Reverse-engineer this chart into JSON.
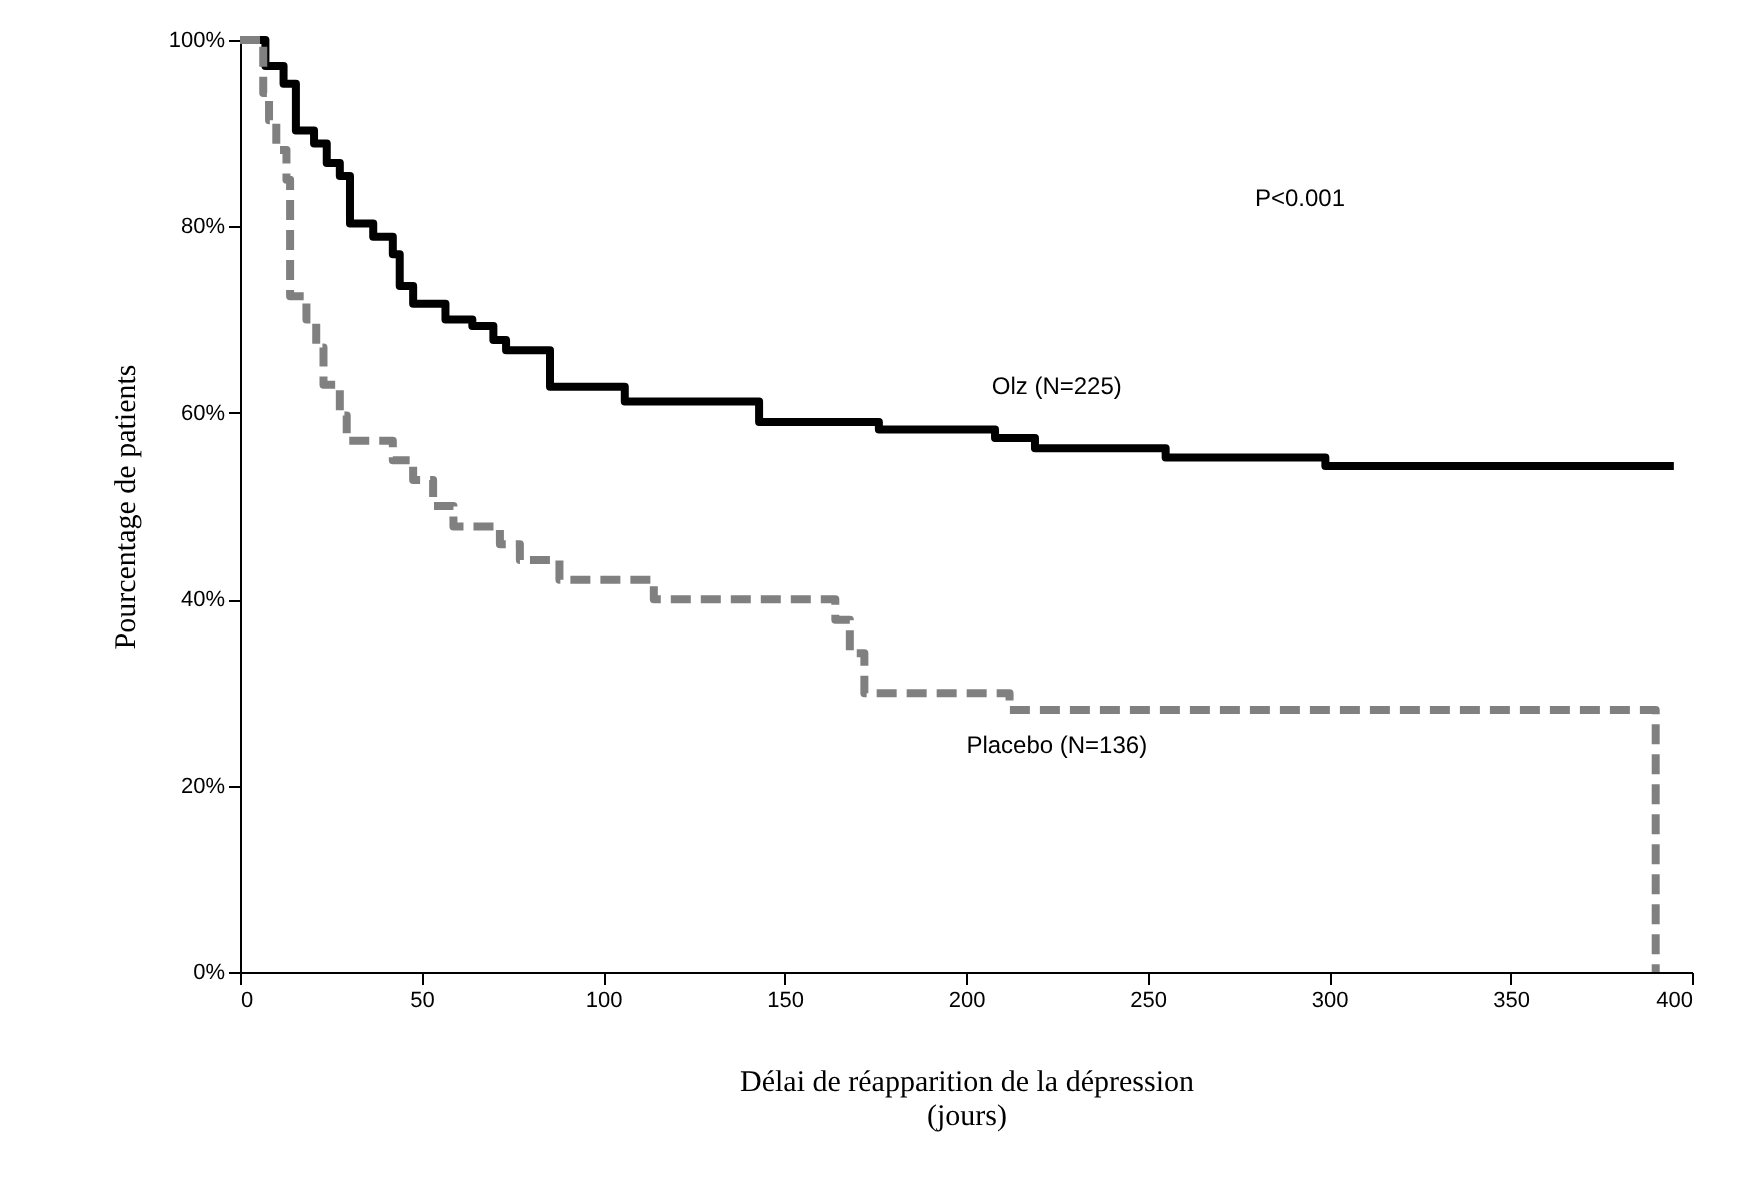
{
  "chart_data": {
    "type": "step",
    "xlabel": "Délai de réapparition de la dépression\n(jours)",
    "ylabel": "Pourcentage de patients",
    "xlim": [
      0,
      400
    ],
    "xticks": [
      0,
      50,
      100,
      150,
      200,
      250,
      300,
      350,
      400
    ],
    "ylim": [
      0,
      100
    ],
    "yticks": [
      {
        "value": 0,
        "label": "0%"
      },
      {
        "value": 20,
        "label": "20%"
      },
      {
        "value": 40,
        "label": "40%"
      },
      {
        "value": 60,
        "label": "60%"
      },
      {
        "value": 80,
        "label": "80%"
      },
      {
        "value": 100,
        "label": "100%"
      }
    ],
    "grid": false,
    "marker": "none",
    "series": [
      {
        "name": "Olz (N=225)",
        "color": "#000000",
        "line_style": "solid",
        "x": [
          0,
          7,
          12,
          15.4,
          20.4,
          23.9,
          27.5,
          30.3,
          36.7,
          42.1,
          44,
          47.7,
          56.6,
          64,
          69.8,
          73.3,
          85.4,
          106,
          143,
          176,
          208,
          219,
          255,
          299,
          395
        ],
        "values": [
          100,
          97.2,
          95.3,
          90.3,
          88.9,
          86.8,
          85.4,
          80.3,
          78.9,
          77,
          73.6,
          71.7,
          70,
          69.3,
          67.8,
          66.7,
          62.8,
          61.2,
          59,
          58.2,
          57.3,
          56.2,
          55.2,
          54.3,
          54.3
        ]
      },
      {
        "name": "Placebo (N=136)",
        "color": "#808080",
        "line_style": "dashed",
        "x": [
          0,
          6.4,
          8,
          10,
          12.8,
          13.8,
          18.3,
          21,
          23,
          27.5,
          29.4,
          42.1,
          47.7,
          53.2,
          58.8,
          71.6,
          77.1,
          88,
          114,
          164,
          168,
          172,
          212,
          390
        ],
        "values": [
          100,
          94.3,
          91.4,
          88.2,
          85,
          72.5,
          70,
          67,
          63,
          59.7,
          57,
          54.9,
          52.8,
          50,
          47.8,
          45.9,
          44.2,
          42.1,
          40,
          37.8,
          34.2,
          29.9,
          28.1,
          0
        ]
      }
    ],
    "annotations": [
      "P<0.001"
    ]
  }
}
